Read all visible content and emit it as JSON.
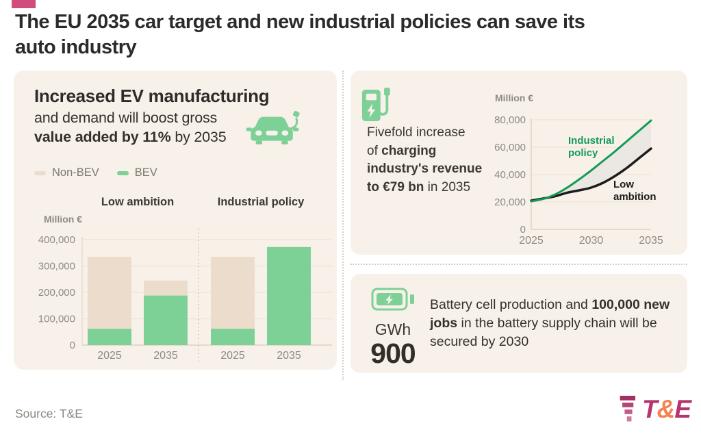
{
  "header": {
    "title_line1": "The EU 2035 car target and new industrial policies can save its",
    "title_line2": "auto industry",
    "kicker_color": "#d14b7d"
  },
  "panels": {
    "gva": {
      "title_bold": "Increased EV manufacturing",
      "subtitle_regular": "and demand will boost gross",
      "subtitle_bold": "value added by 11%",
      "subtitle_tail": " by 2035"
    },
    "charging": {
      "line1": "Fivefold increase",
      "line2_regular": "of ",
      "line2_bold": "charging",
      "line3_bold": "industry's revenue",
      "line4_bold": "to €79 bn",
      "line4_regular": " in 2035"
    },
    "battery": {
      "unit": "GWh",
      "value": "900",
      "text_regular1": "Battery cell production and ",
      "text_bold": "100,000 new jobs",
      "text_regular2": " in the battery supply chain will be secured by 2030"
    }
  },
  "footer": {
    "source": "Source: T&E",
    "logo_t": "T",
    "logo_amp": "&",
    "logo_e": "E"
  },
  "colors": {
    "panel_bg": "#f8f1ea",
    "bev_green": "#7dd096",
    "nonbev_tan": "#ecdccb",
    "line_green": "#149a58",
    "line_black": "#1c1c1c",
    "accent_pink": "#d14b7d",
    "logo_magenta": "#b53470",
    "logo_orange": "#f28355"
  },
  "chart_data": [
    {
      "type": "bar",
      "stacked": true,
      "title": "Gross value added by EV manufacturing",
      "unit_label": "Million €",
      "ylim": [
        0,
        400000
      ],
      "yticks": [
        0,
        100000,
        200000,
        300000,
        400000
      ],
      "legend_items": [
        {
          "label": "Non-BEV",
          "color": "#ecdccb"
        },
        {
          "label": "BEV",
          "color": "#7dd096"
        }
      ],
      "groups": [
        {
          "label": "Low ambition",
          "bars": [
            {
              "x": "2025",
              "BEV": 62000,
              "Non-BEV": 273000
            },
            {
              "x": "2035",
              "BEV": 188000,
              "Non-BEV": 57000
            }
          ]
        },
        {
          "label": "Industrial policy",
          "bars": [
            {
              "x": "2025",
              "BEV": 62000,
              "Non-BEV": 273000
            },
            {
              "x": "2035",
              "BEV": 372000,
              "Non-BEV": 0
            }
          ]
        }
      ]
    },
    {
      "type": "line",
      "title": "Charging industry revenue",
      "unit_label": "Million €",
      "ylim": [
        0,
        80000
      ],
      "yticks": [
        0,
        20000,
        40000,
        60000,
        80000
      ],
      "xticks": [
        2025,
        2030,
        2035
      ],
      "x": [
        2025,
        2026,
        2027,
        2028,
        2029,
        2030,
        2031,
        2032,
        2033,
        2034,
        2035
      ],
      "series": [
        {
          "name": "Industrial policy",
          "color": "#149a58",
          "values": [
            20500,
            22200,
            25500,
            30500,
            36500,
            43000,
            50000,
            57000,
            64500,
            72000,
            79500
          ]
        },
        {
          "name": "Low ambition",
          "color": "#1c1c1c",
          "values": [
            21000,
            22500,
            24200,
            26800,
            28500,
            30500,
            34000,
            39000,
            45000,
            52000,
            59000
          ]
        }
      ],
      "fill_between_color": "#ebe8e3",
      "legend_position": "inline-labels"
    }
  ]
}
